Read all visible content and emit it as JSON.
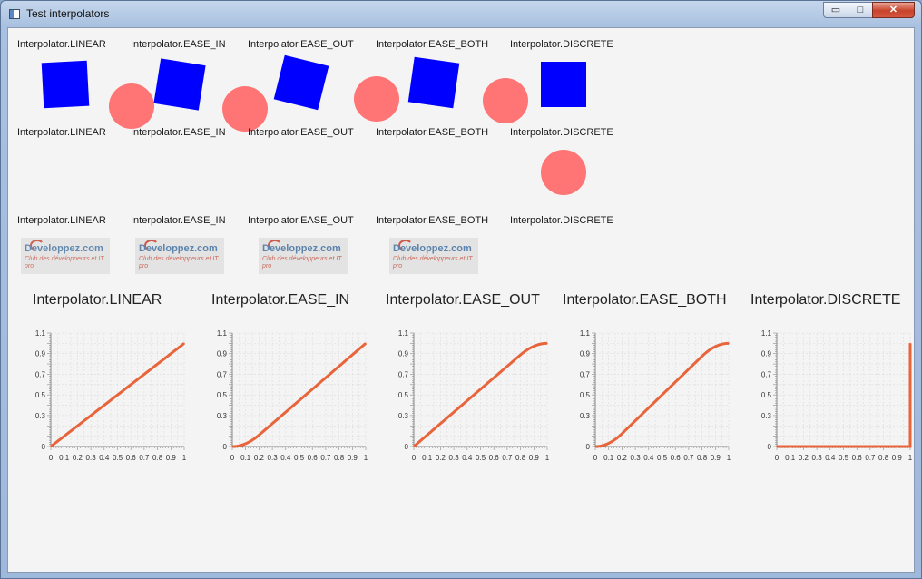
{
  "window": {
    "title": "Test interpolators",
    "min_glyph": "▭",
    "max_glyph": "□",
    "close_glyph": "✕"
  },
  "interpolators": [
    "Interpolator.LINEAR",
    "Interpolator.EASE_IN",
    "Interpolator.EASE_OUT",
    "Interpolator.EASE_BOTH",
    "Interpolator.DISCRETE"
  ],
  "rows": {
    "row1_labels": [
      "Interpolator.LINEAR",
      "Interpolator.EASE_IN",
      "Interpolator.EASE_OUT",
      "Interpolator.EASE_BOTH",
      "Interpolator.DISCRETE"
    ],
    "row2_labels": [
      "Interpolator.LINEAR",
      "Interpolator.EASE_IN",
      "Interpolator.EASE_OUT",
      "Interpolator.EASE_BOTH",
      "Interpolator.DISCRETE"
    ],
    "row3_labels": [
      "Interpolator.LINEAR",
      "Interpolator.EASE_IN",
      "Interpolator.EASE_OUT",
      "Interpolator.EASE_BOTH",
      "Interpolator.DISCRETE"
    ]
  },
  "logo": {
    "name": "Developpez.com",
    "tagline": "Club des développeurs et IT pro"
  },
  "colors": {
    "square": "#0000ff",
    "circle": "#ff7474",
    "curve": "#e8643a",
    "grid": "#dcdcdc"
  },
  "chart_data": [
    {
      "type": "line",
      "title": "Interpolator.LINEAR",
      "function": "linear",
      "xlim": [
        0,
        1
      ],
      "ylim": [
        0,
        1.1
      ],
      "x_ticks": [
        "0",
        "0.1",
        "0.2",
        "0.3",
        "0.4",
        "0.5",
        "0.6",
        "0.7",
        "0.8",
        "0.9",
        "1"
      ],
      "y_ticks": [
        "0",
        "0.3",
        "0.5",
        "0.7",
        "0.9",
        "1.1"
      ],
      "x": [
        0,
        0.1,
        0.2,
        0.3,
        0.4,
        0.5,
        0.6,
        0.7,
        0.8,
        0.9,
        1
      ],
      "y": [
        0,
        0.1,
        0.2,
        0.3,
        0.4,
        0.5,
        0.6,
        0.7,
        0.8,
        0.9,
        1
      ],
      "grid": true
    },
    {
      "type": "line",
      "title": "Interpolator.EASE_IN",
      "function": "ease_in",
      "xlim": [
        0,
        1
      ],
      "ylim": [
        0,
        1.1
      ],
      "x_ticks": [
        "0",
        "0.1",
        "0.2",
        "0.3",
        "0.4",
        "0.5",
        "0.6",
        "0.7",
        "0.8",
        "0.9",
        "1"
      ],
      "y_ticks": [
        "0",
        "0.3",
        "0.5",
        "0.7",
        "0.9",
        "1.1"
      ],
      "x": [
        0,
        0.1,
        0.2,
        0.3,
        0.4,
        0.5,
        0.6,
        0.7,
        0.8,
        0.9,
        1
      ],
      "y": [
        0,
        0.03,
        0.11,
        0.22,
        0.33,
        0.44,
        0.56,
        0.67,
        0.78,
        0.89,
        1
      ],
      "grid": true
    },
    {
      "type": "line",
      "title": "Interpolator.EASE_OUT",
      "function": "ease_out",
      "xlim": [
        0,
        1
      ],
      "ylim": [
        0,
        1.1
      ],
      "x_ticks": [
        "0",
        "0.1",
        "0.2",
        "0.3",
        "0.4",
        "0.5",
        "0.6",
        "0.7",
        "0.8",
        "0.9",
        "1"
      ],
      "y_ticks": [
        "0",
        "0.3",
        "0.5",
        "0.7",
        "0.9",
        "1.1"
      ],
      "x": [
        0,
        0.1,
        0.2,
        0.3,
        0.4,
        0.5,
        0.6,
        0.7,
        0.8,
        0.9,
        1
      ],
      "y": [
        0,
        0.11,
        0.22,
        0.33,
        0.44,
        0.56,
        0.67,
        0.78,
        0.89,
        0.97,
        1
      ],
      "grid": true
    },
    {
      "type": "line",
      "title": "Interpolator.EASE_BOTH",
      "function": "ease_both",
      "xlim": [
        0,
        1
      ],
      "ylim": [
        0,
        1.1
      ],
      "x_ticks": [
        "0",
        "0.1",
        "0.2",
        "0.3",
        "0.4",
        "0.5",
        "0.6",
        "0.7",
        "0.8",
        "0.9",
        "1"
      ],
      "y_ticks": [
        "0",
        "0.3",
        "0.5",
        "0.7",
        "0.9",
        "1.1"
      ],
      "x": [
        0,
        0.1,
        0.2,
        0.3,
        0.4,
        0.5,
        0.6,
        0.7,
        0.8,
        0.9,
        1
      ],
      "y": [
        0,
        0.03,
        0.13,
        0.25,
        0.38,
        0.5,
        0.63,
        0.75,
        0.88,
        0.97,
        1
      ],
      "grid": true
    },
    {
      "type": "line",
      "title": "Interpolator.DISCRETE",
      "function": "discrete",
      "xlim": [
        0,
        1
      ],
      "ylim": [
        0,
        1.1
      ],
      "x_ticks": [
        "0",
        "0.1",
        "0.2",
        "0.3",
        "0.4",
        "0.5",
        "0.6",
        "0.7",
        "0.8",
        "0.9",
        "1"
      ],
      "y_ticks": [
        "0",
        "0.3",
        "0.5",
        "0.7",
        "0.9",
        "1.1"
      ],
      "x": [
        0,
        0.1,
        0.2,
        0.3,
        0.4,
        0.5,
        0.6,
        0.7,
        0.8,
        0.9,
        1,
        1
      ],
      "y": [
        0,
        0,
        0,
        0,
        0,
        0,
        0,
        0,
        0,
        0,
        0,
        1
      ],
      "grid": true
    }
  ]
}
